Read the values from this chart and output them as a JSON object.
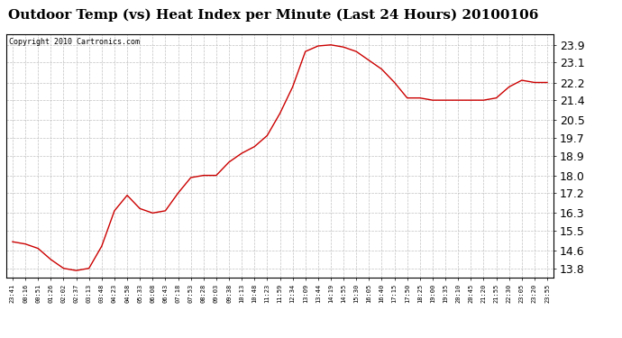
{
  "title": "Outdoor Temp (vs) Heat Index per Minute (Last 24 Hours) 20100106",
  "copyright": "Copyright 2010 Cartronics.com",
  "line_color": "#cc0000",
  "background_color": "#ffffff",
  "plot_bg_color": "#ffffff",
  "grid_color": "#bbbbbb",
  "title_fontsize": 11,
  "ytick_fontsize": 9,
  "xtick_fontsize": 5,
  "yticks": [
    13.8,
    14.6,
    15.5,
    16.3,
    17.2,
    18.0,
    18.9,
    19.7,
    20.5,
    21.4,
    22.2,
    23.1,
    23.9
  ],
  "ylim": [
    13.4,
    24.4
  ],
  "xtick_labels": [
    "23:41",
    "00:16",
    "00:51",
    "01:26",
    "02:02",
    "02:37",
    "03:13",
    "03:48",
    "04:23",
    "04:58",
    "05:33",
    "06:08",
    "06:43",
    "07:18",
    "07:53",
    "08:28",
    "09:03",
    "09:38",
    "10:13",
    "10:48",
    "11:23",
    "11:59",
    "12:34",
    "13:09",
    "13:44",
    "14:19",
    "14:55",
    "15:30",
    "16:05",
    "16:40",
    "17:15",
    "17:50",
    "18:25",
    "19:00",
    "19:35",
    "20:10",
    "20:45",
    "21:20",
    "21:55",
    "22:30",
    "23:05",
    "23:20",
    "23:55"
  ],
  "data_y": [
    15.0,
    14.9,
    14.7,
    14.2,
    13.8,
    13.7,
    13.8,
    14.8,
    16.4,
    17.1,
    16.5,
    16.3,
    16.4,
    17.2,
    17.9,
    18.0,
    18.0,
    18.6,
    19.0,
    19.3,
    19.8,
    20.8,
    22.0,
    23.6,
    23.85,
    23.9,
    23.8,
    23.6,
    23.2,
    22.8,
    22.2,
    21.5,
    21.5,
    21.4,
    21.4,
    21.4,
    21.4,
    21.4,
    21.5,
    22.0,
    22.3,
    22.2,
    22.2
  ]
}
